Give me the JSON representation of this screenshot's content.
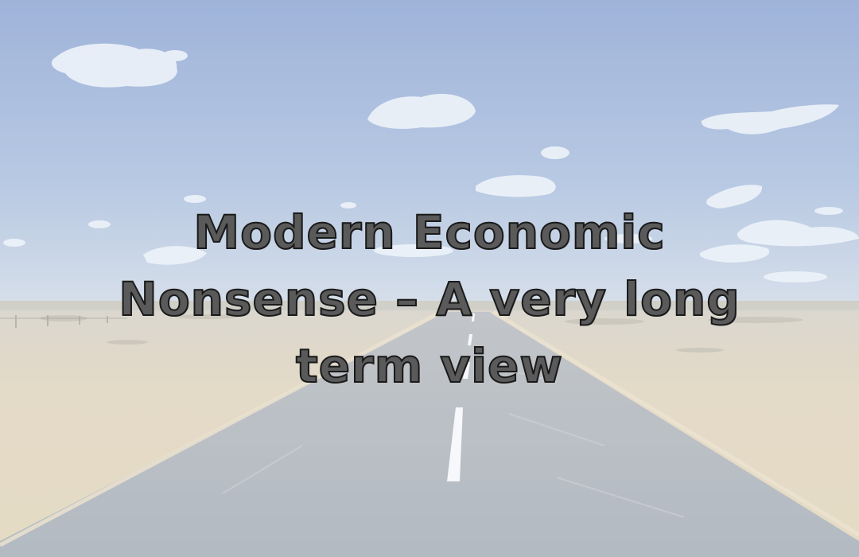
{
  "image": {
    "scene": "desert highway under blue sky with clouds",
    "colors": {
      "sky_top": "#8aa3d2",
      "sky_bottom": "#c8d5e6",
      "sand": "#ddd0b8",
      "road": "#a6aeb6",
      "lane_mark": "#f4f7fb"
    }
  },
  "overlay": {
    "title_line_1": "Modern Economic",
    "title_line_2": "Nonsense – A very long",
    "title_line_3": "term view"
  }
}
